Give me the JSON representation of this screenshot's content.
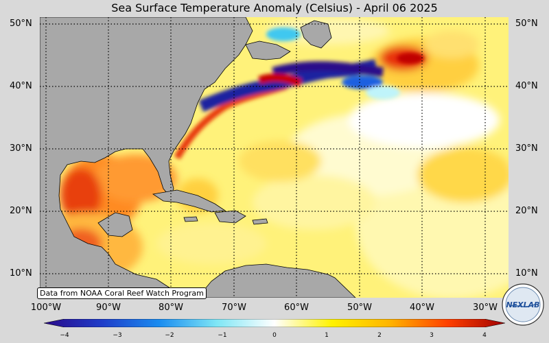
{
  "title": "Sea Surface Temperature Anomaly (Celsius) - April 06 2025",
  "lat_labels": [
    "50°N",
    "40°N",
    "30°N",
    "20°N",
    "10°N"
  ],
  "lon_labels": [
    "100°W",
    "90°W",
    "80°W",
    "70°W",
    "60°W",
    "50°W",
    "40°W",
    "30°W"
  ],
  "credit": "Data from NOAA Coral Reef Watch Program",
  "colorbar": {
    "ticks": [
      "−4",
      "−3",
      "−2",
      "−1",
      "0",
      "1",
      "2",
      "3",
      "4"
    ],
    "colors": [
      "#2a0a8a",
      "#1f3cc8",
      "#1a8cf0",
      "#7fe6f5",
      "#ffffff",
      "#fff200",
      "#ffb400",
      "#ff4000",
      "#a00000"
    ]
  },
  "logo_text": "NEXLAB",
  "colors": {
    "land": "#a8a8a8",
    "ocean_base": "#fff07a",
    "background": "#d9d9d9"
  }
}
